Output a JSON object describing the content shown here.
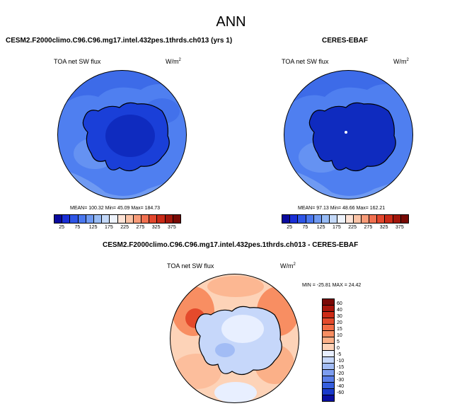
{
  "figure": {
    "title": "ANN"
  },
  "panels": [
    {
      "title": "CESM2.F2000climo.C96.C96.mg17.intel.432pes.1thrds.ch013 (yrs 1)",
      "variable": "TOA net SW flux",
      "units": "W/m",
      "units_sup": "2",
      "stats": "MEAN= 100.32  Min= 45.09  Max= 184.73"
    },
    {
      "title": "CERES-EBAF",
      "variable": "TOA net SW flux",
      "units": "W/m",
      "units_sup": "2",
      "stats": "MEAN= 97.13  Min= 48.66  Max= 162.21"
    },
    {
      "title": "CESM2.F2000climo.C96.C96.mg17.intel.432pes.1thrds.ch013 - CERES-EBAF",
      "variable": "TOA net SW flux",
      "units": "W/m",
      "units_sup": "2",
      "stats": "MIN = -25.81  MAX = 24.42"
    }
  ],
  "colorbar_abs": {
    "ticks": [
      "25",
      "75",
      "125",
      "175",
      "225",
      "275",
      "325",
      "375"
    ],
    "colors": [
      "#0a0a9e",
      "#1a2fd6",
      "#2e55e6",
      "#4a77ee",
      "#6f9af2",
      "#97bbf5",
      "#c3d8f8",
      "#eef3fc",
      "#fde3d6",
      "#fbc3a6",
      "#f79b78",
      "#f07050",
      "#e2472d",
      "#c92a17",
      "#a2160b",
      "#780a05"
    ]
  },
  "colorbar_diff": {
    "labels": [
      "60",
      "40",
      "30",
      "20",
      "15",
      "10",
      "5",
      "0",
      "-5",
      "-10",
      "-15",
      "-20",
      "-30",
      "-40",
      "-60"
    ],
    "colors": [
      "#7a0805",
      "#a8150b",
      "#cd2b16",
      "#e44a2c",
      "#f26c45",
      "#f88e62",
      "#fbb088",
      "#fdd3b8",
      "#e8efff",
      "#c6d7fa",
      "#a2bcf5",
      "#7d9df0",
      "#5a7ee9",
      "#365fdf",
      "#1a3acb",
      "#0a0fa2"
    ]
  },
  "chart_data": [
    {
      "type": "heatmap",
      "map": "south-polar-stereographic",
      "title": "CESM2.F2000climo.C96.C96.mg17.intel.432pes.1thrds.ch013 (yrs 1)",
      "variable": "TOA net SW flux",
      "units": "W/m2",
      "mean": 100.32,
      "min": 45.09,
      "max": 184.73,
      "color_levels": [
        25,
        50,
        75,
        100,
        125,
        150,
        175,
        200,
        225,
        250,
        275,
        300,
        325,
        350,
        375
      ]
    },
    {
      "type": "heatmap",
      "map": "south-polar-stereographic",
      "title": "CERES-EBAF",
      "variable": "TOA net SW flux",
      "units": "W/m2",
      "mean": 97.13,
      "min": 48.66,
      "max": 162.21,
      "color_levels": [
        25,
        50,
        75,
        100,
        125,
        150,
        175,
        200,
        225,
        250,
        275,
        300,
        325,
        350,
        375
      ]
    },
    {
      "type": "heatmap",
      "map": "south-polar-stereographic",
      "title": "CESM2.F2000climo.C96.C96.mg17.intel.432pes.1thrds.ch013 - CERES-EBAF",
      "variable": "TOA net SW flux",
      "units": "W/m2",
      "min": -25.81,
      "max": 24.42,
      "color_levels": [
        -60,
        -40,
        -30,
        -20,
        -15,
        -10,
        -5,
        0,
        5,
        10,
        15,
        20,
        30,
        40,
        60
      ]
    }
  ]
}
